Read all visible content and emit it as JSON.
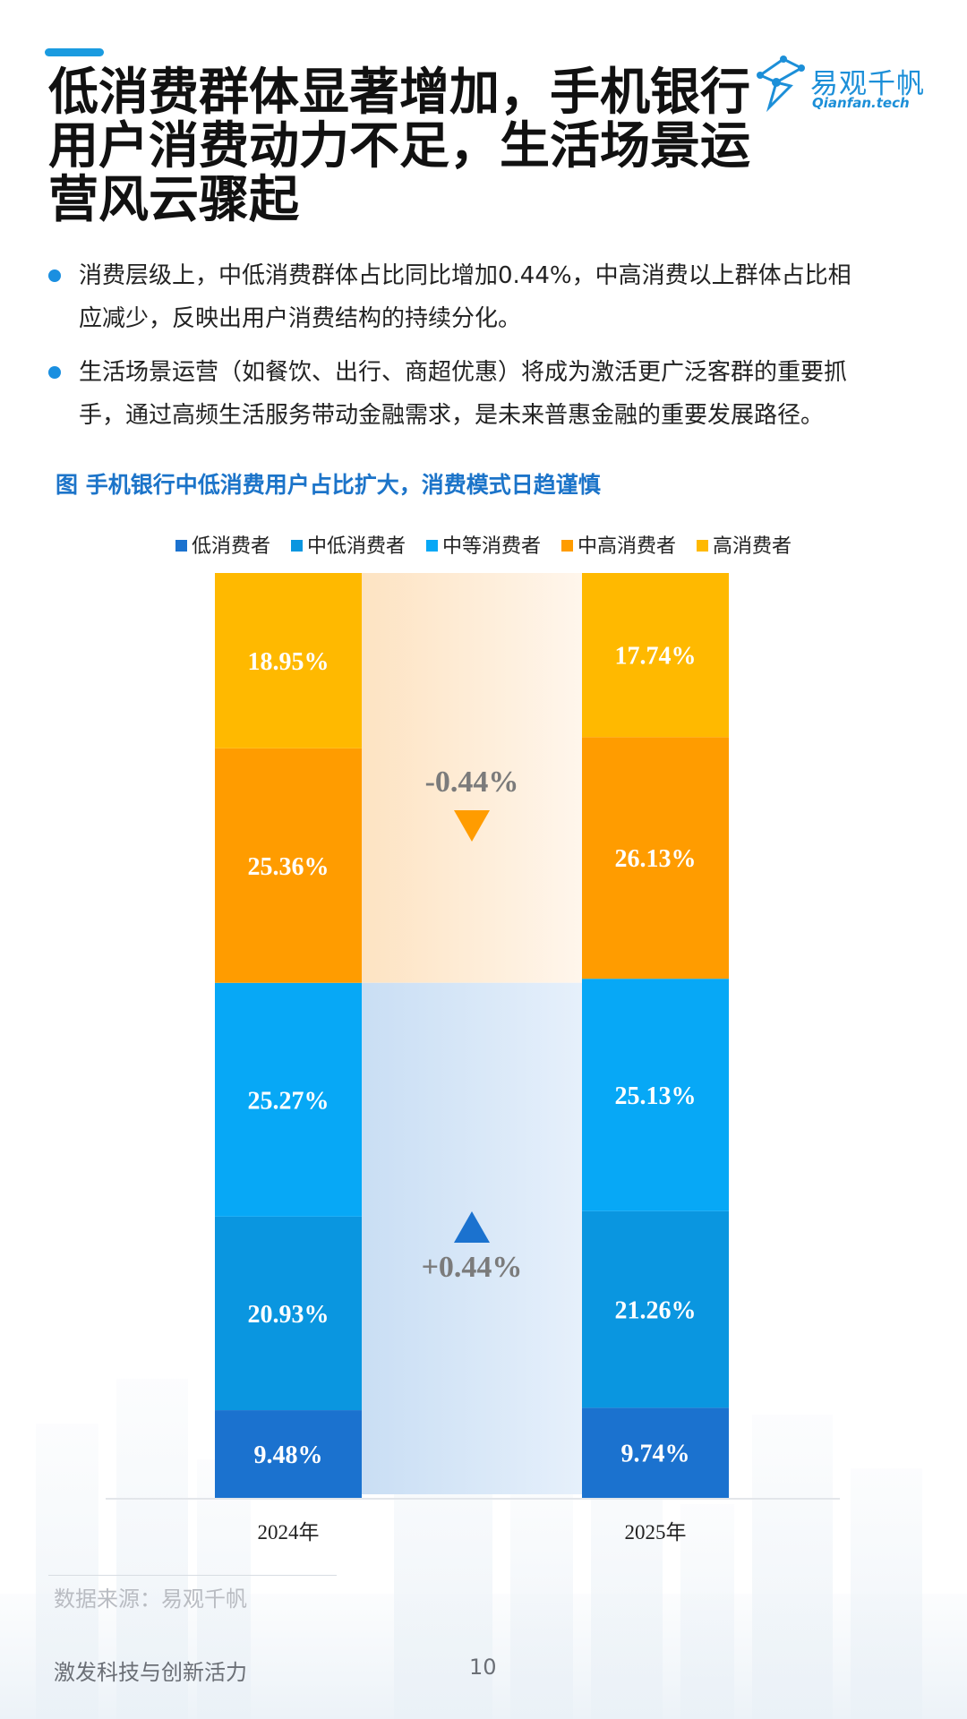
{
  "title_lines": [
    "低消费群体显著增加，手机银行",
    "用户消费动力不足，生活场景运",
    "营风云骤起"
  ],
  "logo": {
    "cn": "易观千帆",
    "en": "Qianfan.tech"
  },
  "bullets": [
    {
      "line1": "消费层级上，中低消费群体占比同比增加0.44%，中高消费以上群体占比相",
      "line2": "应减少，反映出用户消费结构的持续分化。"
    },
    {
      "line1": "生活场景运营（如餐饮、出行、商超优惠）将成为激活更广泛客群的重要抓",
      "line2": "手，通过高频生活服务带动金融需求，是未来普惠金融的重要发展路径。"
    }
  ],
  "figure_title": "图  手机银行中低消费用户占比扩大，消费模式日趋谨慎",
  "chart_data": {
    "type": "bar",
    "stacked": true,
    "categories": [
      "2024年",
      "2025年"
    ],
    "series": [
      {
        "name": "低消费者",
        "values": [
          9.48,
          9.74
        ],
        "labels": [
          "9.48%",
          "9.74%"
        ],
        "color": "#1b72cf"
      },
      {
        "name": "中低消费者",
        "values": [
          20.93,
          21.26
        ],
        "labels": [
          "20.93%",
          "21.26%"
        ],
        "color": "#0a96e0"
      },
      {
        "name": "中等消费者",
        "values": [
          25.27,
          25.13
        ],
        "labels": [
          "25.27%",
          "25.13%"
        ],
        "color": "#07a8f6"
      },
      {
        "name": "中高消费者",
        "values": [
          25.36,
          26.13
        ],
        "labels": [
          "25.36%",
          "26.13%"
        ],
        "color": "#ff9c00"
      },
      {
        "name": "高消费者",
        "values": [
          18.95,
          17.74
        ],
        "labels": [
          "18.95%",
          "17.74%"
        ],
        "color": "#ffb900"
      }
    ],
    "annotations": [
      {
        "text": "-0.44%",
        "direction": "down",
        "group": "upper",
        "color": "#ff9c00"
      },
      {
        "text": "+0.44%",
        "direction": "up",
        "group": "lower",
        "color": "#1b72cf"
      }
    ],
    "legend_position": "top",
    "ylim": [
      0,
      100
    ],
    "grid": false
  },
  "source": "数据来源：易观千帆",
  "footer": "激发科技与创新活力",
  "page_number": "10"
}
